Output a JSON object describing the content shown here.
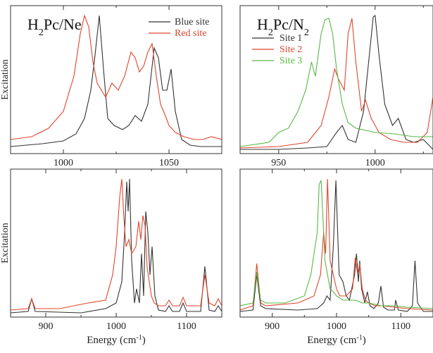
{
  "chart_data": [
    {
      "type": "line",
      "title": "H2Pc/Ne",
      "title_parts": {
        "base": "H",
        "sub": "2",
        "rest": "Pc/Ne"
      },
      "xlabel": "",
      "ylabel": "Excitation",
      "xlim": [
        975,
        1075
      ],
      "ylim": [
        0,
        1.05
      ],
      "xticks": [
        1000,
        1050
      ],
      "xtick_labels": [
        "1000",
        "1050"
      ],
      "yticks": [],
      "grid": false,
      "legend_position": "top-right",
      "series": [
        {
          "name": "Blue site",
          "color": "#333333",
          "x": [
            975,
            990,
            1000,
            1006,
            1010,
            1013,
            1015,
            1017,
            1019,
            1021,
            1024,
            1028,
            1031,
            1034,
            1037,
            1040,
            1043,
            1045,
            1047,
            1049,
            1051,
            1053,
            1056,
            1060,
            1065,
            1070,
            1075
          ],
          "y": [
            0.05,
            0.07,
            0.09,
            0.14,
            0.25,
            0.45,
            0.7,
            0.98,
            0.6,
            0.25,
            0.2,
            0.17,
            0.2,
            0.27,
            0.23,
            0.35,
            0.75,
            0.68,
            0.45,
            0.45,
            0.6,
            0.3,
            0.1,
            0.06,
            0.05,
            0.05,
            0.05
          ]
        },
        {
          "name": "Red site",
          "color": "#e0462d",
          "x": [
            975,
            985,
            993,
            1000,
            1005,
            1008,
            1010,
            1012,
            1014,
            1016,
            1018,
            1020,
            1023,
            1026,
            1029,
            1032,
            1034,
            1036,
            1038,
            1040,
            1042,
            1044,
            1046,
            1048,
            1050,
            1053,
            1057,
            1062,
            1066,
            1070,
            1075
          ],
          "y": [
            0.1,
            0.12,
            0.18,
            0.3,
            0.55,
            0.85,
            0.98,
            0.9,
            0.65,
            0.5,
            0.45,
            0.4,
            0.5,
            0.45,
            0.55,
            0.72,
            0.68,
            0.58,
            0.62,
            0.72,
            0.78,
            0.55,
            0.35,
            0.28,
            0.2,
            0.15,
            0.12,
            0.1,
            0.1,
            0.12,
            0.1
          ]
        }
      ]
    },
    {
      "type": "line",
      "title": "H2Pc/N2",
      "title_parts": {
        "base": "H",
        "sub": "2",
        "rest": "Pc/N",
        "sub2": "2"
      },
      "xlabel": "",
      "ylabel": "",
      "xlim": [
        930,
        1030
      ],
      "ylim": [
        0,
        1.05
      ],
      "xticks": [
        950,
        1000
      ],
      "xtick_labels": [
        "950",
        "1000"
      ],
      "yticks": [],
      "grid": false,
      "legend_position": "top-left",
      "series": [
        {
          "name": "Site 1",
          "color": "#333333",
          "x": [
            930,
            950,
            965,
            975,
            980,
            983,
            986,
            990,
            994,
            997,
            999,
            1000,
            1002,
            1005,
            1009,
            1012,
            1016,
            1020,
            1025,
            1030
          ],
          "y": [
            0.03,
            0.03,
            0.04,
            0.05,
            0.15,
            0.2,
            0.1,
            0.08,
            0.3,
            0.7,
            0.97,
            0.98,
            0.7,
            0.35,
            0.2,
            0.25,
            0.1,
            0.08,
            0.1,
            0.03
          ]
        },
        {
          "name": "Site 2",
          "color": "#e0462d",
          "x": [
            930,
            950,
            965,
            972,
            976,
            979,
            981,
            984,
            986,
            988,
            990,
            993,
            995,
            998,
            1002,
            1008,
            1015,
            1022,
            1027,
            1030
          ],
          "y": [
            0.04,
            0.05,
            0.08,
            0.2,
            0.4,
            0.6,
            0.53,
            0.45,
            0.85,
            0.96,
            0.65,
            0.3,
            0.38,
            0.25,
            0.15,
            0.1,
            0.08,
            0.08,
            0.15,
            0.4
          ]
        },
        {
          "name": "Site 3",
          "color": "#59b844",
          "x": [
            930,
            945,
            950,
            955,
            960,
            964,
            967,
            969,
            972,
            974,
            976,
            978,
            980,
            983,
            986,
            990,
            1000,
            1010,
            1020,
            1030
          ],
          "y": [
            0.05,
            0.08,
            0.15,
            0.18,
            0.3,
            0.45,
            0.65,
            0.55,
            0.85,
            0.95,
            0.96,
            0.85,
            0.6,
            0.35,
            0.22,
            0.18,
            0.15,
            0.14,
            0.12,
            0.12
          ]
        }
      ]
    },
    {
      "type": "line",
      "title": "",
      "xlabel": "Energy (cm-1)",
      "xlabel_parts": {
        "base": "Energy (cm",
        "sup": "-1",
        "rest": ")"
      },
      "ylabel": "Excitation",
      "xlim": [
        850,
        1150
      ],
      "ylim": [
        0,
        1.05
      ],
      "xticks": [
        900,
        1000,
        1100
      ],
      "xtick_labels": [
        "900",
        "1000",
        "1100"
      ],
      "yticks": [],
      "grid": false,
      "series": [
        {
          "name": "",
          "color": "#333333",
          "x": [
            850,
            875,
            880,
            885,
            950,
            985,
            1000,
            1008,
            1012,
            1015,
            1017,
            1019,
            1022,
            1026,
            1029,
            1033,
            1036,
            1039,
            1042,
            1045,
            1048,
            1051,
            1055,
            1060,
            1070,
            1075,
            1080,
            1090,
            1095,
            1100,
            1120,
            1126,
            1132,
            1140,
            1145,
            1150
          ],
          "y": [
            0.03,
            0.04,
            0.13,
            0.04,
            0.03,
            0.06,
            0.1,
            0.25,
            0.6,
            0.96,
            0.75,
            0.98,
            0.4,
            0.1,
            0.2,
            0.1,
            0.45,
            0.15,
            0.75,
            0.6,
            0.3,
            0.5,
            0.15,
            0.05,
            0.04,
            0.08,
            0.04,
            0.04,
            0.1,
            0.04,
            0.04,
            0.36,
            0.05,
            0.04,
            0.08,
            0.04
          ]
        },
        {
          "name": "",
          "color": "#e0462d",
          "x": [
            850,
            875,
            880,
            885,
            920,
            960,
            985,
            995,
            1000,
            1005,
            1008,
            1011,
            1014,
            1018,
            1022,
            1028,
            1032,
            1035,
            1038,
            1041,
            1044,
            1047,
            1050,
            1054,
            1060,
            1070,
            1075,
            1080,
            1090,
            1095,
            1100,
            1120,
            1126,
            1132,
            1140,
            1145,
            1150
          ],
          "y": [
            0.05,
            0.06,
            0.13,
            0.06,
            0.06,
            0.1,
            0.12,
            0.3,
            0.5,
            0.85,
            0.98,
            0.7,
            0.5,
            0.55,
            0.45,
            0.5,
            0.68,
            0.55,
            0.72,
            0.65,
            0.35,
            0.25,
            0.15,
            0.1,
            0.08,
            0.08,
            0.12,
            0.08,
            0.08,
            0.14,
            0.08,
            0.08,
            0.3,
            0.1,
            0.08,
            0.13,
            0.08
          ]
        }
      ]
    },
    {
      "type": "line",
      "title": "",
      "xlabel": "Energy (cm-1)",
      "xlabel_parts": {
        "base": "Energy (cm",
        "sup": "-1",
        "rest": ")"
      },
      "ylabel": "",
      "xlim": [
        850,
        1150
      ],
      "ylim": [
        0,
        1.05
      ],
      "xticks": [
        900,
        1000,
        1100
      ],
      "xtick_labels": [
        "900",
        "1000",
        "1100"
      ],
      "yticks": [],
      "grid": false,
      "series": [
        {
          "name": "",
          "color": "#333333",
          "x": [
            850,
            870,
            876,
            882,
            890,
            940,
            970,
            980,
            985,
            990,
            995,
            999,
            1001,
            1004,
            1010,
            1015,
            1020,
            1028,
            1031,
            1034,
            1036,
            1039,
            1044,
            1048,
            1052,
            1058,
            1065,
            1069,
            1073,
            1080,
            1090,
            1092,
            1096,
            1110,
            1118,
            1122,
            1126,
            1135,
            1150
          ],
          "y": [
            0.04,
            0.05,
            0.3,
            0.08,
            0.06,
            0.05,
            0.06,
            0.1,
            0.15,
            0.12,
            0.5,
            0.97,
            0.7,
            0.3,
            0.25,
            0.15,
            0.12,
            0.3,
            0.45,
            0.25,
            0.4,
            0.2,
            0.1,
            0.18,
            0.08,
            0.06,
            0.1,
            0.22,
            0.07,
            0.05,
            0.05,
            0.12,
            0.05,
            0.04,
            0.08,
            0.4,
            0.1,
            0.04,
            0.04
          ]
        },
        {
          "name": "",
          "color": "#e0462d",
          "x": [
            850,
            870,
            876,
            882,
            890,
            940,
            965,
            975,
            980,
            983,
            986,
            988,
            990,
            995,
            1000,
            1005,
            1015,
            1025,
            1029,
            1033,
            1036,
            1040,
            1045,
            1050,
            1060,
            1070,
            1090,
            1110,
            1150
          ],
          "y": [
            0.05,
            0.08,
            0.38,
            0.1,
            0.08,
            0.1,
            0.15,
            0.3,
            0.6,
            0.45,
            0.98,
            0.7,
            0.4,
            0.3,
            0.2,
            0.15,
            0.15,
            0.2,
            0.42,
            0.3,
            0.38,
            0.2,
            0.12,
            0.1,
            0.08,
            0.08,
            0.07,
            0.06,
            0.05
          ]
        },
        {
          "name": "",
          "color": "#59b844",
          "x": [
            850,
            870,
            876,
            882,
            890,
            920,
            950,
            960,
            965,
            970,
            973,
            976,
            979,
            982,
            986,
            990,
            995,
            1000,
            1010,
            1020,
            1030,
            1040,
            1050,
            1070,
            1090,
            1110,
            1150
          ],
          "y": [
            0.08,
            0.1,
            0.32,
            0.12,
            0.1,
            0.1,
            0.15,
            0.3,
            0.45,
            0.6,
            0.94,
            0.97,
            0.7,
            0.4,
            0.3,
            0.2,
            0.18,
            0.15,
            0.12,
            0.12,
            0.12,
            0.1,
            0.1,
            0.08,
            0.08,
            0.07,
            0.06
          ]
        }
      ]
    }
  ]
}
